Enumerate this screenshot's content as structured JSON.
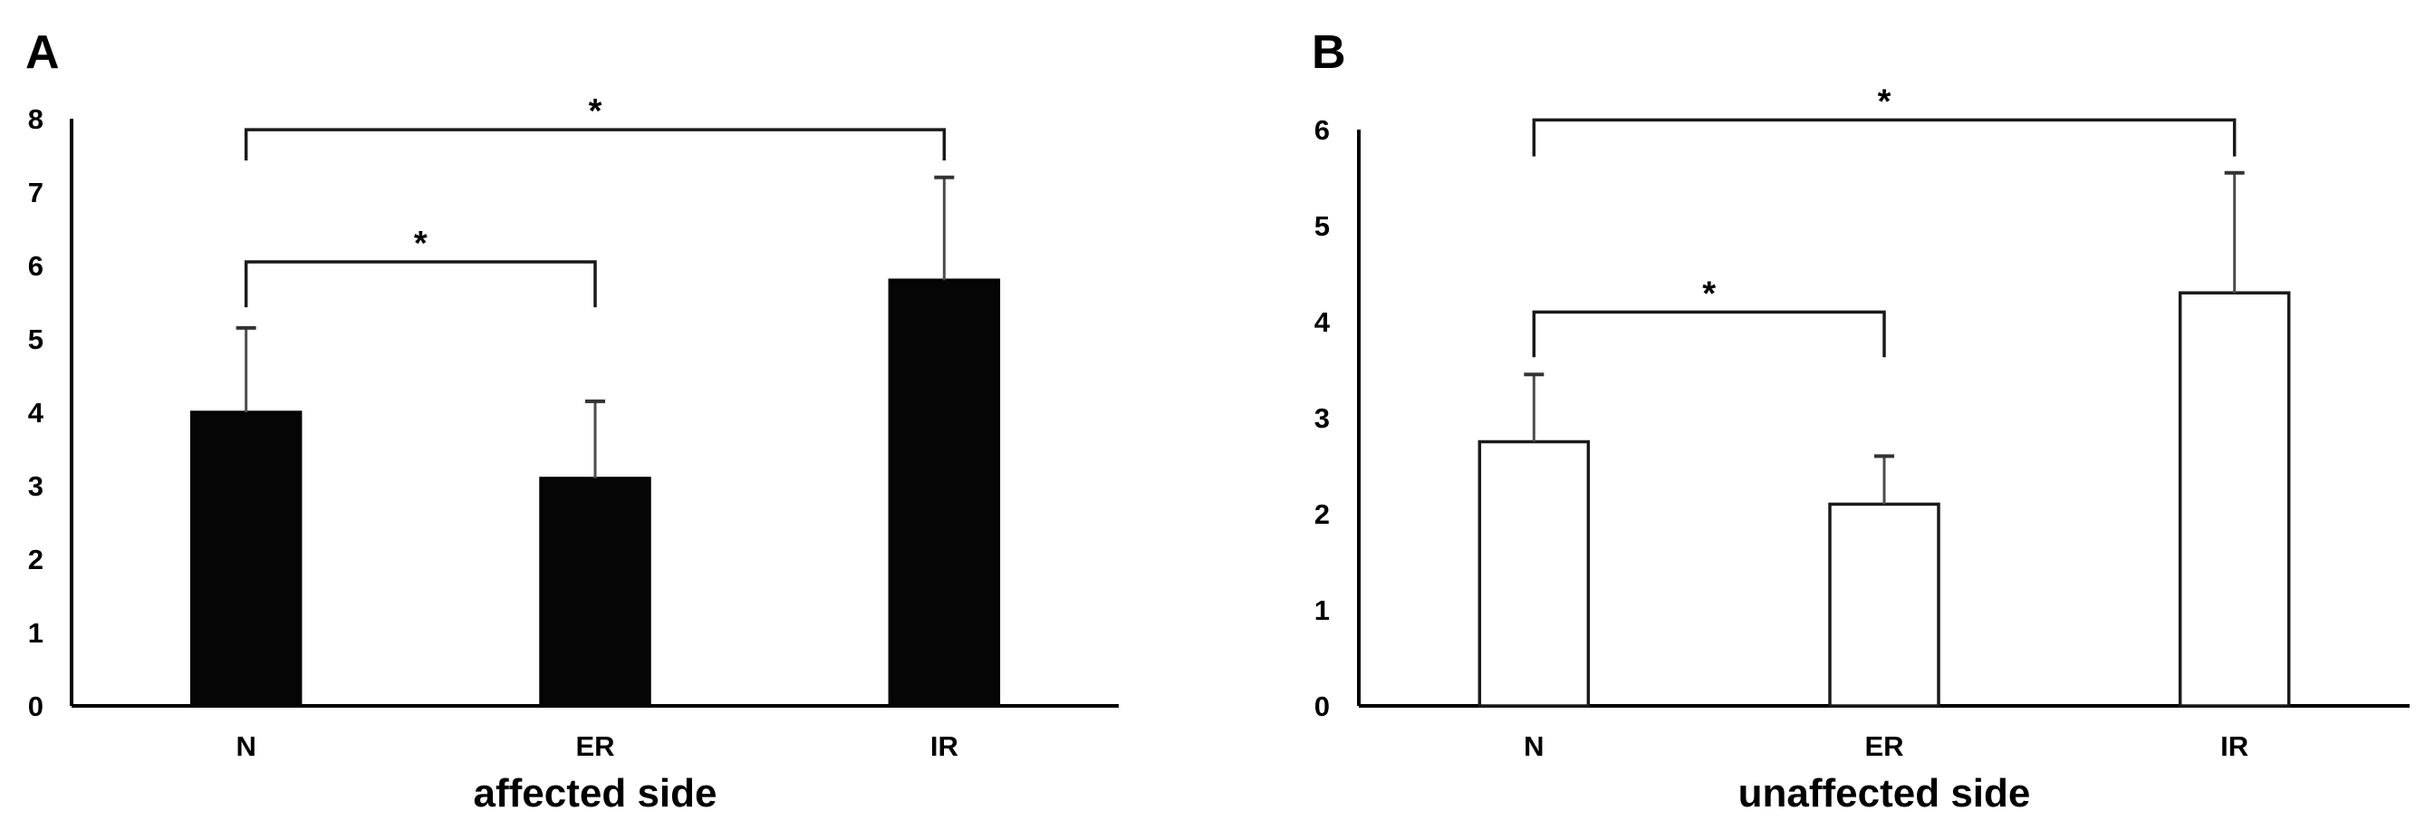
{
  "figure": {
    "background": "#ffffff",
    "axis_color": "#000000",
    "text_color": "#000000",
    "bracket_color": "#1a1a1a",
    "error_bar_color": "#4d4d4d",
    "error_cap_color": "#333333"
  },
  "chart_data": [
    {
      "type": "bar",
      "panel": "A",
      "title": "affected side",
      "categories": [
        "N",
        "ER",
        "IR"
      ],
      "values": [
        4.0,
        3.1,
        5.8
      ],
      "error_upper": [
        1.15,
        1.05,
        1.4
      ],
      "yticks": [
        "0",
        "1",
        "2",
        "3",
        "4",
        "5",
        "6",
        "7",
        "8"
      ],
      "ylim": [
        0,
        8
      ],
      "ytick_step": 1,
      "grid": false,
      "legend": null,
      "bar_fill": "#050505",
      "bar_stroke": "#050505",
      "significance": [
        {
          "pair": [
            0,
            1
          ],
          "label": "*",
          "height": 6.05,
          "tick_drop": 0.62
        },
        {
          "pair": [
            0,
            2
          ],
          "label": "*",
          "height": 7.85,
          "tick_drop": 0.42
        }
      ]
    },
    {
      "type": "bar",
      "panel": "B",
      "title": "unaffected side",
      "categories": [
        "N",
        "ER",
        "IR"
      ],
      "values": [
        2.75,
        2.1,
        4.3
      ],
      "error_upper": [
        0.7,
        0.5,
        1.25
      ],
      "yticks": [
        "0",
        "1",
        "2",
        "3",
        "4",
        "5",
        "6"
      ],
      "ylim": [
        0,
        6
      ],
      "ytick_step": 1,
      "grid": false,
      "legend": null,
      "bar_fill": "#ffffff",
      "bar_stroke": "#1a1a1a",
      "significance": [
        {
          "pair": [
            0,
            1
          ],
          "label": "*",
          "height": 4.1,
          "tick_drop": 0.47
        },
        {
          "pair": [
            0,
            2
          ],
          "label": "*",
          "height": 6.1,
          "tick_drop": 0.38
        }
      ]
    }
  ]
}
